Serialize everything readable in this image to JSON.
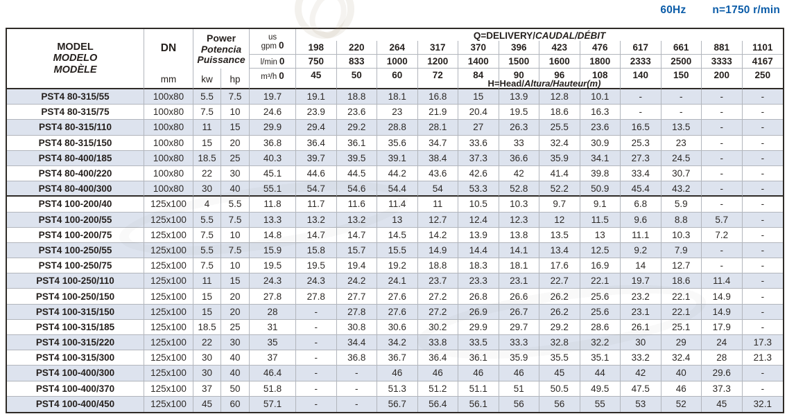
{
  "page": {
    "frequency": "60Hz",
    "speed": "n=1750 r/min",
    "accent_color": "#0b5ca8",
    "stripe_color": "#dde3ee"
  },
  "table": {
    "header": {
      "model": {
        "l1": "MODEL",
        "l2": "MODELO",
        "l3": "MODÈLE"
      },
      "dn": {
        "label": "DN",
        "unit": "mm"
      },
      "power": {
        "l1": "Power",
        "l2": "Potencia",
        "l3": "Puissance",
        "kw": "kw",
        "hp": "hp"
      },
      "q_title": {
        "plain": "Q=DELIVERY/",
        "italic": "CAUDAL/DÉBIT"
      },
      "h_title": {
        "plain": "H=Head/",
        "italic": "Altura/Hauteur(m)"
      },
      "units": {
        "gpm": {
          "line1": "us",
          "line2": "gpm",
          "zero": "0"
        },
        "lmin": {
          "label": "l/min",
          "zero": "0"
        },
        "m3h": {
          "label": "m³/h",
          "zero": "0"
        }
      },
      "gpm": [
        "198",
        "220",
        "264",
        "317",
        "370",
        "396",
        "423",
        "476",
        "617",
        "661",
        "881",
        "1101"
      ],
      "lmin": [
        "750",
        "833",
        "1000",
        "1200",
        "1400",
        "1500",
        "1600",
        "1800",
        "2333",
        "2500",
        "3333",
        "4167"
      ],
      "m3h": [
        "45",
        "50",
        "60",
        "72",
        "84",
        "90",
        "96",
        "108",
        "140",
        "150",
        "200",
        "250"
      ]
    },
    "rows": [
      {
        "model": "PST4 80-315/55",
        "dn": "100x80",
        "kw": "5.5",
        "hp": "7.5",
        "values": [
          "19.7",
          "19.1",
          "18.8",
          "18.1",
          "16.8",
          "15",
          "13.9",
          "12.8",
          "10.1",
          "-",
          "-",
          "-",
          "-"
        ]
      },
      {
        "model": "PST4 80-315/75",
        "dn": "100x80",
        "kw": "7.5",
        "hp": "10",
        "values": [
          "24.6",
          "23.9",
          "23.6",
          "23",
          "21.9",
          "20.4",
          "19.5",
          "18.6",
          "16.3",
          "-",
          "-",
          "-",
          "-"
        ]
      },
      {
        "model": "PST4 80-315/110",
        "dn": "100x80",
        "kw": "11",
        "hp": "15",
        "values": [
          "29.9",
          "29.4",
          "29.2",
          "28.8",
          "28.1",
          "27",
          "26.3",
          "25.5",
          "23.6",
          "16.5",
          "13.5",
          "-",
          "-"
        ]
      },
      {
        "model": "PST4 80-315/150",
        "dn": "100x80",
        "kw": "15",
        "hp": "20",
        "values": [
          "36.8",
          "36.4",
          "36.1",
          "35.6",
          "34.7",
          "33.6",
          "33",
          "32.4",
          "30.9",
          "25.3",
          "23",
          "-",
          "-"
        ]
      },
      {
        "model": "PST4 80-400/185",
        "dn": "100x80",
        "kw": "18.5",
        "hp": "25",
        "values": [
          "40.3",
          "39.7",
          "39.5",
          "39.1",
          "38.4",
          "37.3",
          "36.6",
          "35.9",
          "34.1",
          "27.3",
          "24.5",
          "-",
          "-"
        ]
      },
      {
        "model": "PST4 80-400/220",
        "dn": "100x80",
        "kw": "22",
        "hp": "30",
        "values": [
          "45.1",
          "44.6",
          "44.5",
          "44.2",
          "43.6",
          "42.6",
          "42",
          "41.4",
          "39.8",
          "33.4",
          "30.7",
          "-",
          "-"
        ]
      },
      {
        "model": "PST4 80-400/300",
        "dn": "100x80",
        "kw": "30",
        "hp": "40",
        "values": [
          "55.1",
          "54.7",
          "54.6",
          "54.4",
          "54",
          "53.3",
          "52.8",
          "52.2",
          "50.9",
          "45.4",
          "43.2",
          "-",
          "-"
        ]
      },
      {
        "model": "PST4 100-200/40",
        "dn": "125x100",
        "kw": "4",
        "hp": "5.5",
        "values": [
          "11.8",
          "11.7",
          "11.6",
          "11.4",
          "11",
          "10.5",
          "10.3",
          "9.7",
          "9.1",
          "6.8",
          "5.9",
          "-",
          "-"
        ]
      },
      {
        "model": "PST4 100-200/55",
        "dn": "125x100",
        "kw": "5.5",
        "hp": "7.5",
        "values": [
          "13.3",
          "13.2",
          "13.2",
          "13",
          "12.7",
          "12.4",
          "12.3",
          "12",
          "11.5",
          "9.6",
          "8.8",
          "5.7",
          "-"
        ]
      },
      {
        "model": "PST4 100-200/75",
        "dn": "125x100",
        "kw": "7.5",
        "hp": "10",
        "values": [
          "14.8",
          "14.7",
          "14.7",
          "14.5",
          "14.2",
          "13.9",
          "13.8",
          "13.5",
          "13",
          "11.1",
          "10.3",
          "7.2",
          "-"
        ]
      },
      {
        "model": "PST4 100-250/55",
        "dn": "125x100",
        "kw": "5.5",
        "hp": "7.5",
        "values": [
          "15.9",
          "15.8",
          "15.7",
          "15.5",
          "14.9",
          "14.4",
          "14.1",
          "13.4",
          "12.5",
          "9.2",
          "7.9",
          "-",
          "-"
        ]
      },
      {
        "model": "PST4 100-250/75",
        "dn": "125x100",
        "kw": "7.5",
        "hp": "10",
        "values": [
          "19.5",
          "19.5",
          "19.4",
          "19.2",
          "18.8",
          "18.3",
          "18.1",
          "17.6",
          "16.9",
          "14",
          "12.7",
          "-",
          "-"
        ]
      },
      {
        "model": "PST4 100-250/110",
        "dn": "125x100",
        "kw": "11",
        "hp": "15",
        "values": [
          "24.3",
          "24.3",
          "24.2",
          "24.1",
          "23.7",
          "23.3",
          "23.1",
          "22.7",
          "22.1",
          "19.7",
          "18.6",
          "11.4",
          "-"
        ]
      },
      {
        "model": "PST4 100-250/150",
        "dn": "125x100",
        "kw": "15",
        "hp": "20",
        "values": [
          "27.8",
          "27.8",
          "27.7",
          "27.6",
          "27.2",
          "26.8",
          "26.6",
          "26.2",
          "25.6",
          "23.2",
          "22.1",
          "14.9",
          "-"
        ]
      },
      {
        "model": "PST4 100-315/150",
        "dn": "125x100",
        "kw": "15",
        "hp": "20",
        "values": [
          "28",
          "-",
          "27.8",
          "27.6",
          "27.2",
          "26.9",
          "26.7",
          "26.2",
          "25.6",
          "23.1",
          "22.1",
          "14.9",
          "-"
        ]
      },
      {
        "model": "PST4 100-315/185",
        "dn": "125x100",
        "kw": "18.5",
        "hp": "25",
        "values": [
          "31",
          "-",
          "30.8",
          "30.6",
          "30.2",
          "29.9",
          "29.7",
          "29.2",
          "28.6",
          "26.1",
          "25.1",
          "17.9",
          "-"
        ]
      },
      {
        "model": "PST4 100-315/220",
        "dn": "125x100",
        "kw": "22",
        "hp": "30",
        "values": [
          "35",
          "-",
          "34.4",
          "34.2",
          "33.8",
          "33.5",
          "33.3",
          "32.8",
          "32.2",
          "30",
          "29",
          "24",
          "17.3"
        ]
      },
      {
        "model": "PST4 100-315/300",
        "dn": "125x100",
        "kw": "30",
        "hp": "40",
        "values": [
          "37",
          "-",
          "36.8",
          "36.7",
          "36.4",
          "36.1",
          "35.9",
          "35.5",
          "35.1",
          "33.2",
          "32.4",
          "28",
          "21.3"
        ]
      },
      {
        "model": "PST4 100-400/300",
        "dn": "125x100",
        "kw": "30",
        "hp": "40",
        "values": [
          "46.4",
          "-",
          "-",
          "46",
          "46",
          "46",
          "46",
          "45",
          "44",
          "42",
          "40",
          "29.6",
          "-"
        ]
      },
      {
        "model": "PST4 100-400/370",
        "dn": "125x100",
        "kw": "37",
        "hp": "50",
        "values": [
          "51.8",
          "-",
          "-",
          "51.3",
          "51.2",
          "51.1",
          "51",
          "50.5",
          "49.5",
          "47.5",
          "46",
          "37.3",
          "-"
        ]
      },
      {
        "model": "PST4 100-400/450",
        "dn": "125x100",
        "kw": "45",
        "hp": "60",
        "values": [
          "57.1",
          "-",
          "-",
          "56.7",
          "56.4",
          "56.1",
          "56",
          "56",
          "55",
          "53",
          "52",
          "45",
          "32.1"
        ]
      }
    ]
  }
}
